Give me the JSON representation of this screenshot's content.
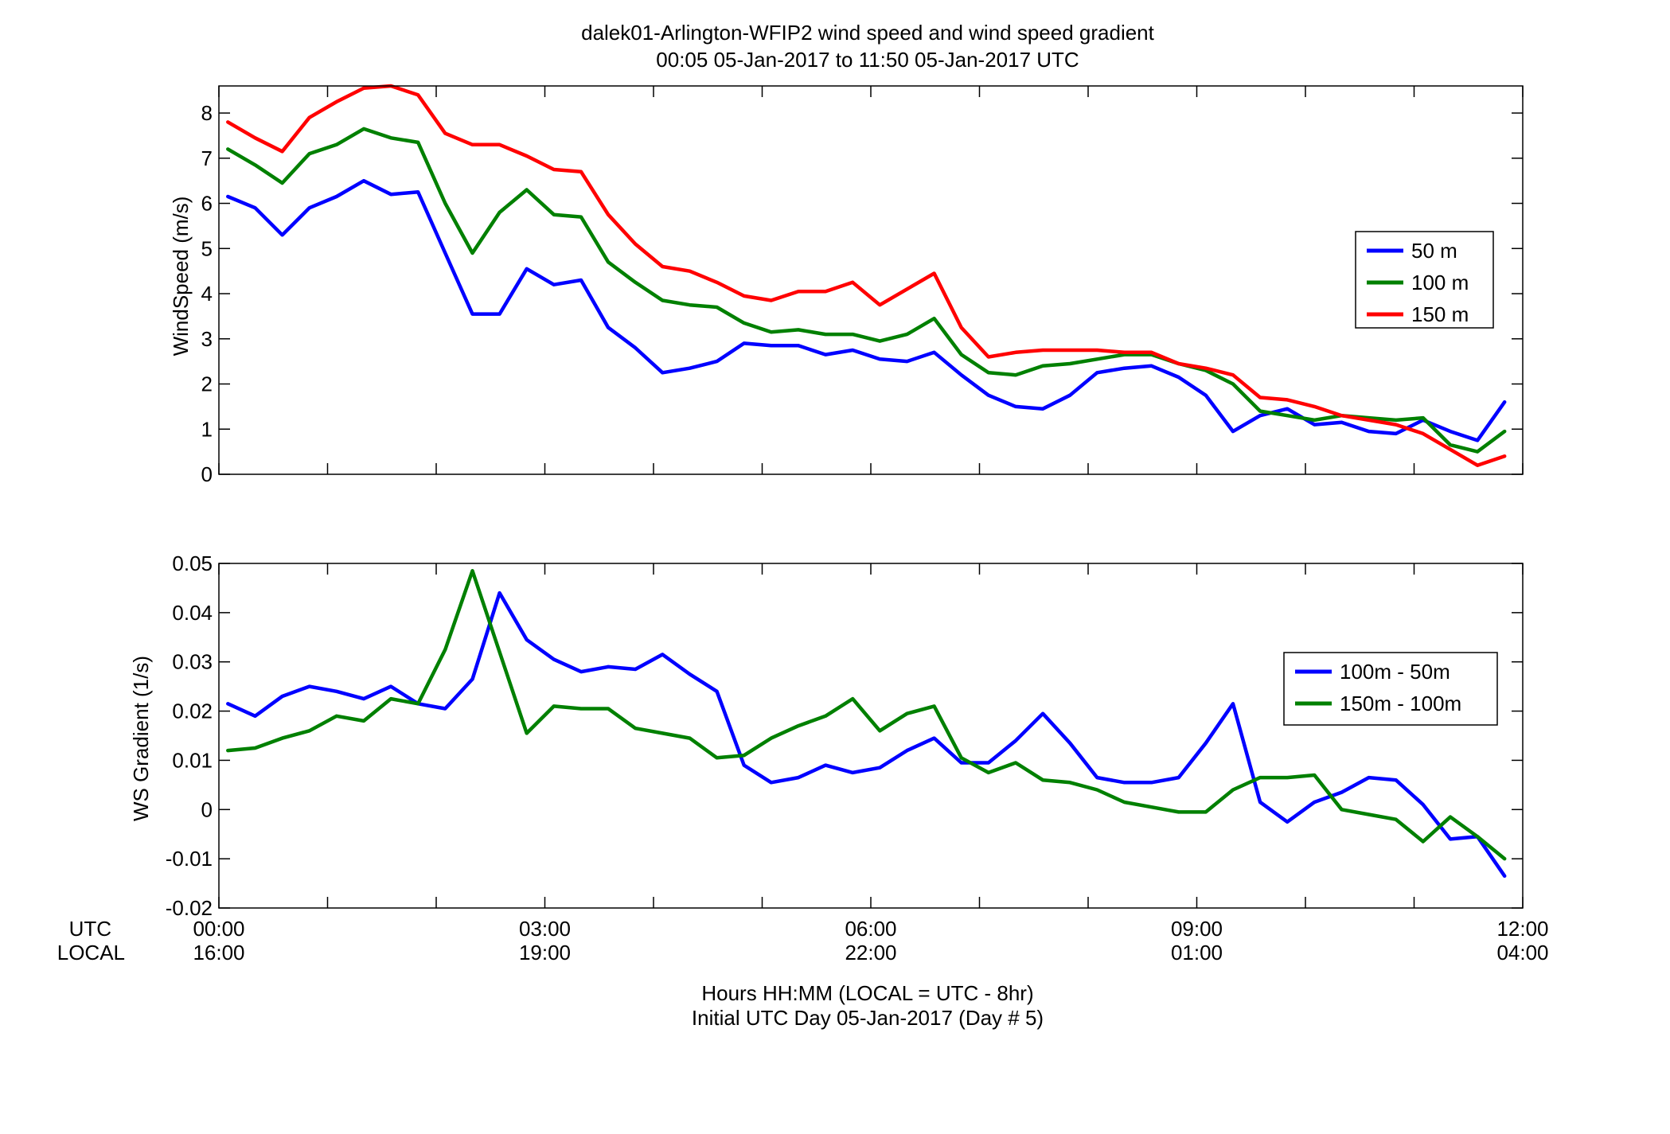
{
  "figure": {
    "title_line1": "dalek01-Arlington-WFIP2  wind speed and wind speed gradient",
    "title_line2": "00:05 05-Jan-2017 to 11:50 05-Jan-2017  UTC",
    "xlabel_line1": "Hours HH:MM  (LOCAL = UTC - 8hr)",
    "xlabel_line2": "Initial UTC Day 05-Jan-2017 (Day # 5)",
    "utc_row_label": "UTC",
    "local_row_label": "LOCAL",
    "utc_ticks": [
      "00:00",
      "03:00",
      "06:00",
      "09:00",
      "12:00"
    ],
    "local_ticks": [
      "16:00",
      "19:00",
      "22:00",
      "01:00",
      "04:00"
    ]
  },
  "chart_data": [
    {
      "type": "line",
      "title": "",
      "xlabel": "",
      "ylabel": "WindSpeed (m/s)",
      "xlim": [
        0,
        12
      ],
      "ylim": [
        0,
        8.6
      ],
      "yticks": [
        "0",
        "1",
        "2",
        "3",
        "4",
        "5",
        "6",
        "7",
        "8"
      ],
      "grid": false,
      "legend_position": "right",
      "x": [
        0.083,
        0.333,
        0.583,
        0.833,
        1.083,
        1.333,
        1.583,
        1.833,
        2.083,
        2.333,
        2.583,
        2.833,
        3.083,
        3.333,
        3.583,
        3.833,
        4.083,
        4.333,
        4.583,
        4.833,
        5.083,
        5.333,
        5.583,
        5.833,
        6.083,
        6.333,
        6.583,
        6.833,
        7.083,
        7.333,
        7.583,
        7.833,
        8.083,
        8.333,
        8.583,
        8.833,
        9.083,
        9.333,
        9.583,
        9.833,
        10.083,
        10.333,
        10.583,
        10.833,
        11.083,
        11.333,
        11.583,
        11.833
      ],
      "series": [
        {
          "name": "50 m",
          "color": "#0000ff",
          "values": [
            6.15,
            5.9,
            5.3,
            5.9,
            6.15,
            6.5,
            6.2,
            6.25,
            4.9,
            3.55,
            3.55,
            4.55,
            4.2,
            4.3,
            3.25,
            2.8,
            2.25,
            2.35,
            2.5,
            2.9,
            2.85,
            2.85,
            2.65,
            2.75,
            2.55,
            2.5,
            2.7,
            2.2,
            1.75,
            1.5,
            1.45,
            1.75,
            2.25,
            2.35,
            2.4,
            2.15,
            1.75,
            0.95,
            1.3,
            1.45,
            1.1,
            1.15,
            0.95,
            0.9,
            1.2,
            0.95,
            0.75,
            1.6
          ]
        },
        {
          "name": "100 m",
          "color": "#008000",
          "values": [
            7.2,
            6.85,
            6.45,
            7.1,
            7.3,
            7.65,
            7.45,
            7.35,
            6.0,
            4.9,
            5.8,
            6.3,
            5.75,
            5.7,
            4.7,
            4.25,
            3.85,
            3.75,
            3.7,
            3.35,
            3.15,
            3.2,
            3.1,
            3.1,
            2.95,
            3.1,
            3.45,
            2.65,
            2.25,
            2.2,
            2.4,
            2.45,
            2.55,
            2.65,
            2.65,
            2.45,
            2.3,
            2.0,
            1.4,
            1.3,
            1.2,
            1.3,
            1.25,
            1.2,
            1.25,
            0.65,
            0.5,
            0.95
          ]
        },
        {
          "name": "150 m",
          "color": "#ff0000",
          "values": [
            7.8,
            7.45,
            7.15,
            7.9,
            8.25,
            8.55,
            8.6,
            8.4,
            7.55,
            7.3,
            7.3,
            7.05,
            6.75,
            6.7,
            5.75,
            5.1,
            4.6,
            4.5,
            4.25,
            3.95,
            3.85,
            4.05,
            4.05,
            4.25,
            3.75,
            4.1,
            4.45,
            3.25,
            2.6,
            2.7,
            2.75,
            2.75,
            2.75,
            2.7,
            2.7,
            2.45,
            2.35,
            2.2,
            1.7,
            1.65,
            1.5,
            1.3,
            1.2,
            1.1,
            0.9,
            0.55,
            0.2,
            0.4
          ]
        }
      ]
    },
    {
      "type": "line",
      "title": "",
      "xlabel": "",
      "ylabel": "WS Gradient (1/s)",
      "xlim": [
        0,
        12
      ],
      "ylim": [
        -0.02,
        0.05
      ],
      "yticks": [
        "-0.02",
        "-0.01",
        "0",
        "0.01",
        "0.02",
        "0.03",
        "0.04",
        "0.05"
      ],
      "grid": false,
      "legend_position": "right",
      "x": [
        0.083,
        0.333,
        0.583,
        0.833,
        1.083,
        1.333,
        1.583,
        1.833,
        2.083,
        2.333,
        2.583,
        2.833,
        3.083,
        3.333,
        3.583,
        3.833,
        4.083,
        4.333,
        4.583,
        4.833,
        5.083,
        5.333,
        5.583,
        5.833,
        6.083,
        6.333,
        6.583,
        6.833,
        7.083,
        7.333,
        7.583,
        7.833,
        8.083,
        8.333,
        8.583,
        8.833,
        9.083,
        9.333,
        9.583,
        9.833,
        10.083,
        10.333,
        10.583,
        10.833,
        11.083,
        11.333,
        11.583,
        11.833
      ],
      "series": [
        {
          "name": "100m - 50m",
          "color": "#0000ff",
          "values": [
            0.0215,
            0.019,
            0.023,
            0.025,
            0.024,
            0.0225,
            0.025,
            0.0215,
            0.0205,
            0.0265,
            0.044,
            0.0345,
            0.0305,
            0.028,
            0.029,
            0.0285,
            0.0315,
            0.0275,
            0.024,
            0.009,
            0.0055,
            0.0065,
            0.009,
            0.0075,
            0.0085,
            0.012,
            0.0145,
            0.0095,
            0.0095,
            0.014,
            0.0195,
            0.0135,
            0.0065,
            0.0055,
            0.0055,
            0.0065,
            0.0135,
            0.0215,
            0.0015,
            -0.0025,
            0.0015,
            0.0035,
            0.0065,
            0.006,
            0.001,
            -0.006,
            -0.0055,
            -0.0135
          ]
        },
        {
          "name": "150m - 100m",
          "color": "#008000",
          "values": [
            0.012,
            0.0125,
            0.0145,
            0.016,
            0.019,
            0.018,
            0.0225,
            0.0215,
            0.0325,
            0.0485,
            0.032,
            0.0155,
            0.021,
            0.0205,
            0.0205,
            0.0165,
            0.0155,
            0.0145,
            0.0105,
            0.011,
            0.0145,
            0.017,
            0.019,
            0.0225,
            0.016,
            0.0195,
            0.021,
            0.0105,
            0.0075,
            0.0095,
            0.006,
            0.0055,
            0.004,
            0.0015,
            0.0005,
            -0.0005,
            -0.0005,
            0.004,
            0.0065,
            0.0065,
            0.007,
            0.0,
            -0.001,
            -0.002,
            -0.0065,
            -0.0015,
            -0.0055,
            -0.01
          ]
        }
      ]
    }
  ]
}
